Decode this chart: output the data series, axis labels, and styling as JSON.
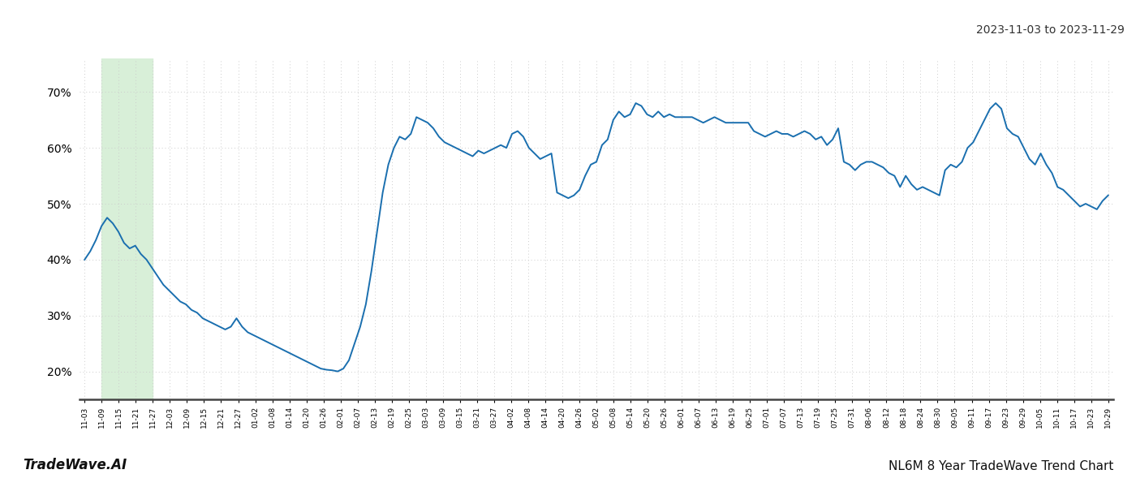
{
  "title_date": "2023-11-03 to 2023-11-29",
  "footer_left": "TradeWave.AI",
  "footer_right": "NL6M 8 Year TradeWave Trend Chart",
  "line_color": "#1a6faf",
  "line_width": 1.4,
  "background_color": "#ffffff",
  "grid_color": "#cccccc",
  "shade_color": "#d8efd8",
  "ylim": [
    15,
    76
  ],
  "yticks": [
    20,
    30,
    40,
    50,
    60,
    70
  ],
  "ytick_labels": [
    "20%",
    "30%",
    "40%",
    "50%",
    "60%",
    "70%"
  ],
  "x_labels": [
    "11-03",
    "11-09",
    "11-15",
    "11-21",
    "11-27",
    "12-03",
    "12-09",
    "12-15",
    "12-21",
    "12-27",
    "01-02",
    "01-08",
    "01-14",
    "01-20",
    "01-26",
    "02-01",
    "02-07",
    "02-13",
    "02-19",
    "02-25",
    "03-03",
    "03-09",
    "03-15",
    "03-21",
    "03-27",
    "04-02",
    "04-08",
    "04-14",
    "04-20",
    "04-26",
    "05-02",
    "05-08",
    "05-14",
    "05-20",
    "05-26",
    "06-01",
    "06-07",
    "06-13",
    "06-19",
    "06-25",
    "07-01",
    "07-07",
    "07-13",
    "07-19",
    "07-25",
    "07-31",
    "08-06",
    "08-12",
    "08-18",
    "08-24",
    "08-30",
    "09-05",
    "09-11",
    "09-17",
    "09-23",
    "09-29",
    "10-05",
    "10-11",
    "10-17",
    "10-23",
    "10-29"
  ],
  "shade_x_start_label": "11-09",
  "shade_x_end_label": "11-27",
  "y_values": [
    40.0,
    41.5,
    43.5,
    46.0,
    47.5,
    46.5,
    45.0,
    43.0,
    42.0,
    42.5,
    41.0,
    40.0,
    38.5,
    37.0,
    35.5,
    34.5,
    33.5,
    32.5,
    32.0,
    31.0,
    30.5,
    29.5,
    29.0,
    28.5,
    28.0,
    27.5,
    28.0,
    29.5,
    28.0,
    27.0,
    26.5,
    26.0,
    25.5,
    25.0,
    24.5,
    24.0,
    23.5,
    23.0,
    22.5,
    22.0,
    21.5,
    21.0,
    20.5,
    20.3,
    20.2,
    20.0,
    20.5,
    22.0,
    25.0,
    28.0,
    32.0,
    38.0,
    45.0,
    52.0,
    57.0,
    60.0,
    62.0,
    61.5,
    62.5,
    65.5,
    65.0,
    64.5,
    63.5,
    62.0,
    61.0,
    60.5,
    60.0,
    59.5,
    59.0,
    58.5,
    59.5,
    59.0,
    59.5,
    60.0,
    60.5,
    60.0,
    62.5,
    63.0,
    62.0,
    60.0,
    59.0,
    58.0,
    58.5,
    59.0,
    52.0,
    51.5,
    51.0,
    51.5,
    52.5,
    55.0,
    57.0,
    57.5,
    60.5,
    61.5,
    65.0,
    66.5,
    65.5,
    66.0,
    68.0,
    67.5,
    66.0,
    65.5,
    66.5,
    65.5,
    66.0,
    65.5,
    65.5,
    65.5,
    65.5,
    65.0,
    64.5,
    65.0,
    65.5,
    65.0,
    64.5,
    64.5,
    64.5,
    64.5,
    64.5,
    63.0,
    62.5,
    62.0,
    62.5,
    63.0,
    62.5,
    62.5,
    62.0,
    62.5,
    63.0,
    62.5,
    61.5,
    62.0,
    60.5,
    61.5,
    63.5,
    57.5,
    57.0,
    56.0,
    57.0,
    57.5,
    57.5,
    57.0,
    56.5,
    55.5,
    55.0,
    53.0,
    55.0,
    53.5,
    52.5,
    53.0,
    52.5,
    52.0,
    51.5,
    56.0,
    57.0,
    56.5,
    57.5,
    60.0,
    61.0,
    63.0,
    65.0,
    67.0,
    68.0,
    67.0,
    63.5,
    62.5,
    62.0,
    60.0,
    58.0,
    57.0,
    59.0,
    57.0,
    55.5,
    53.0,
    52.5,
    51.5,
    50.5,
    49.5,
    50.0,
    49.5,
    49.0,
    50.5,
    51.5
  ]
}
